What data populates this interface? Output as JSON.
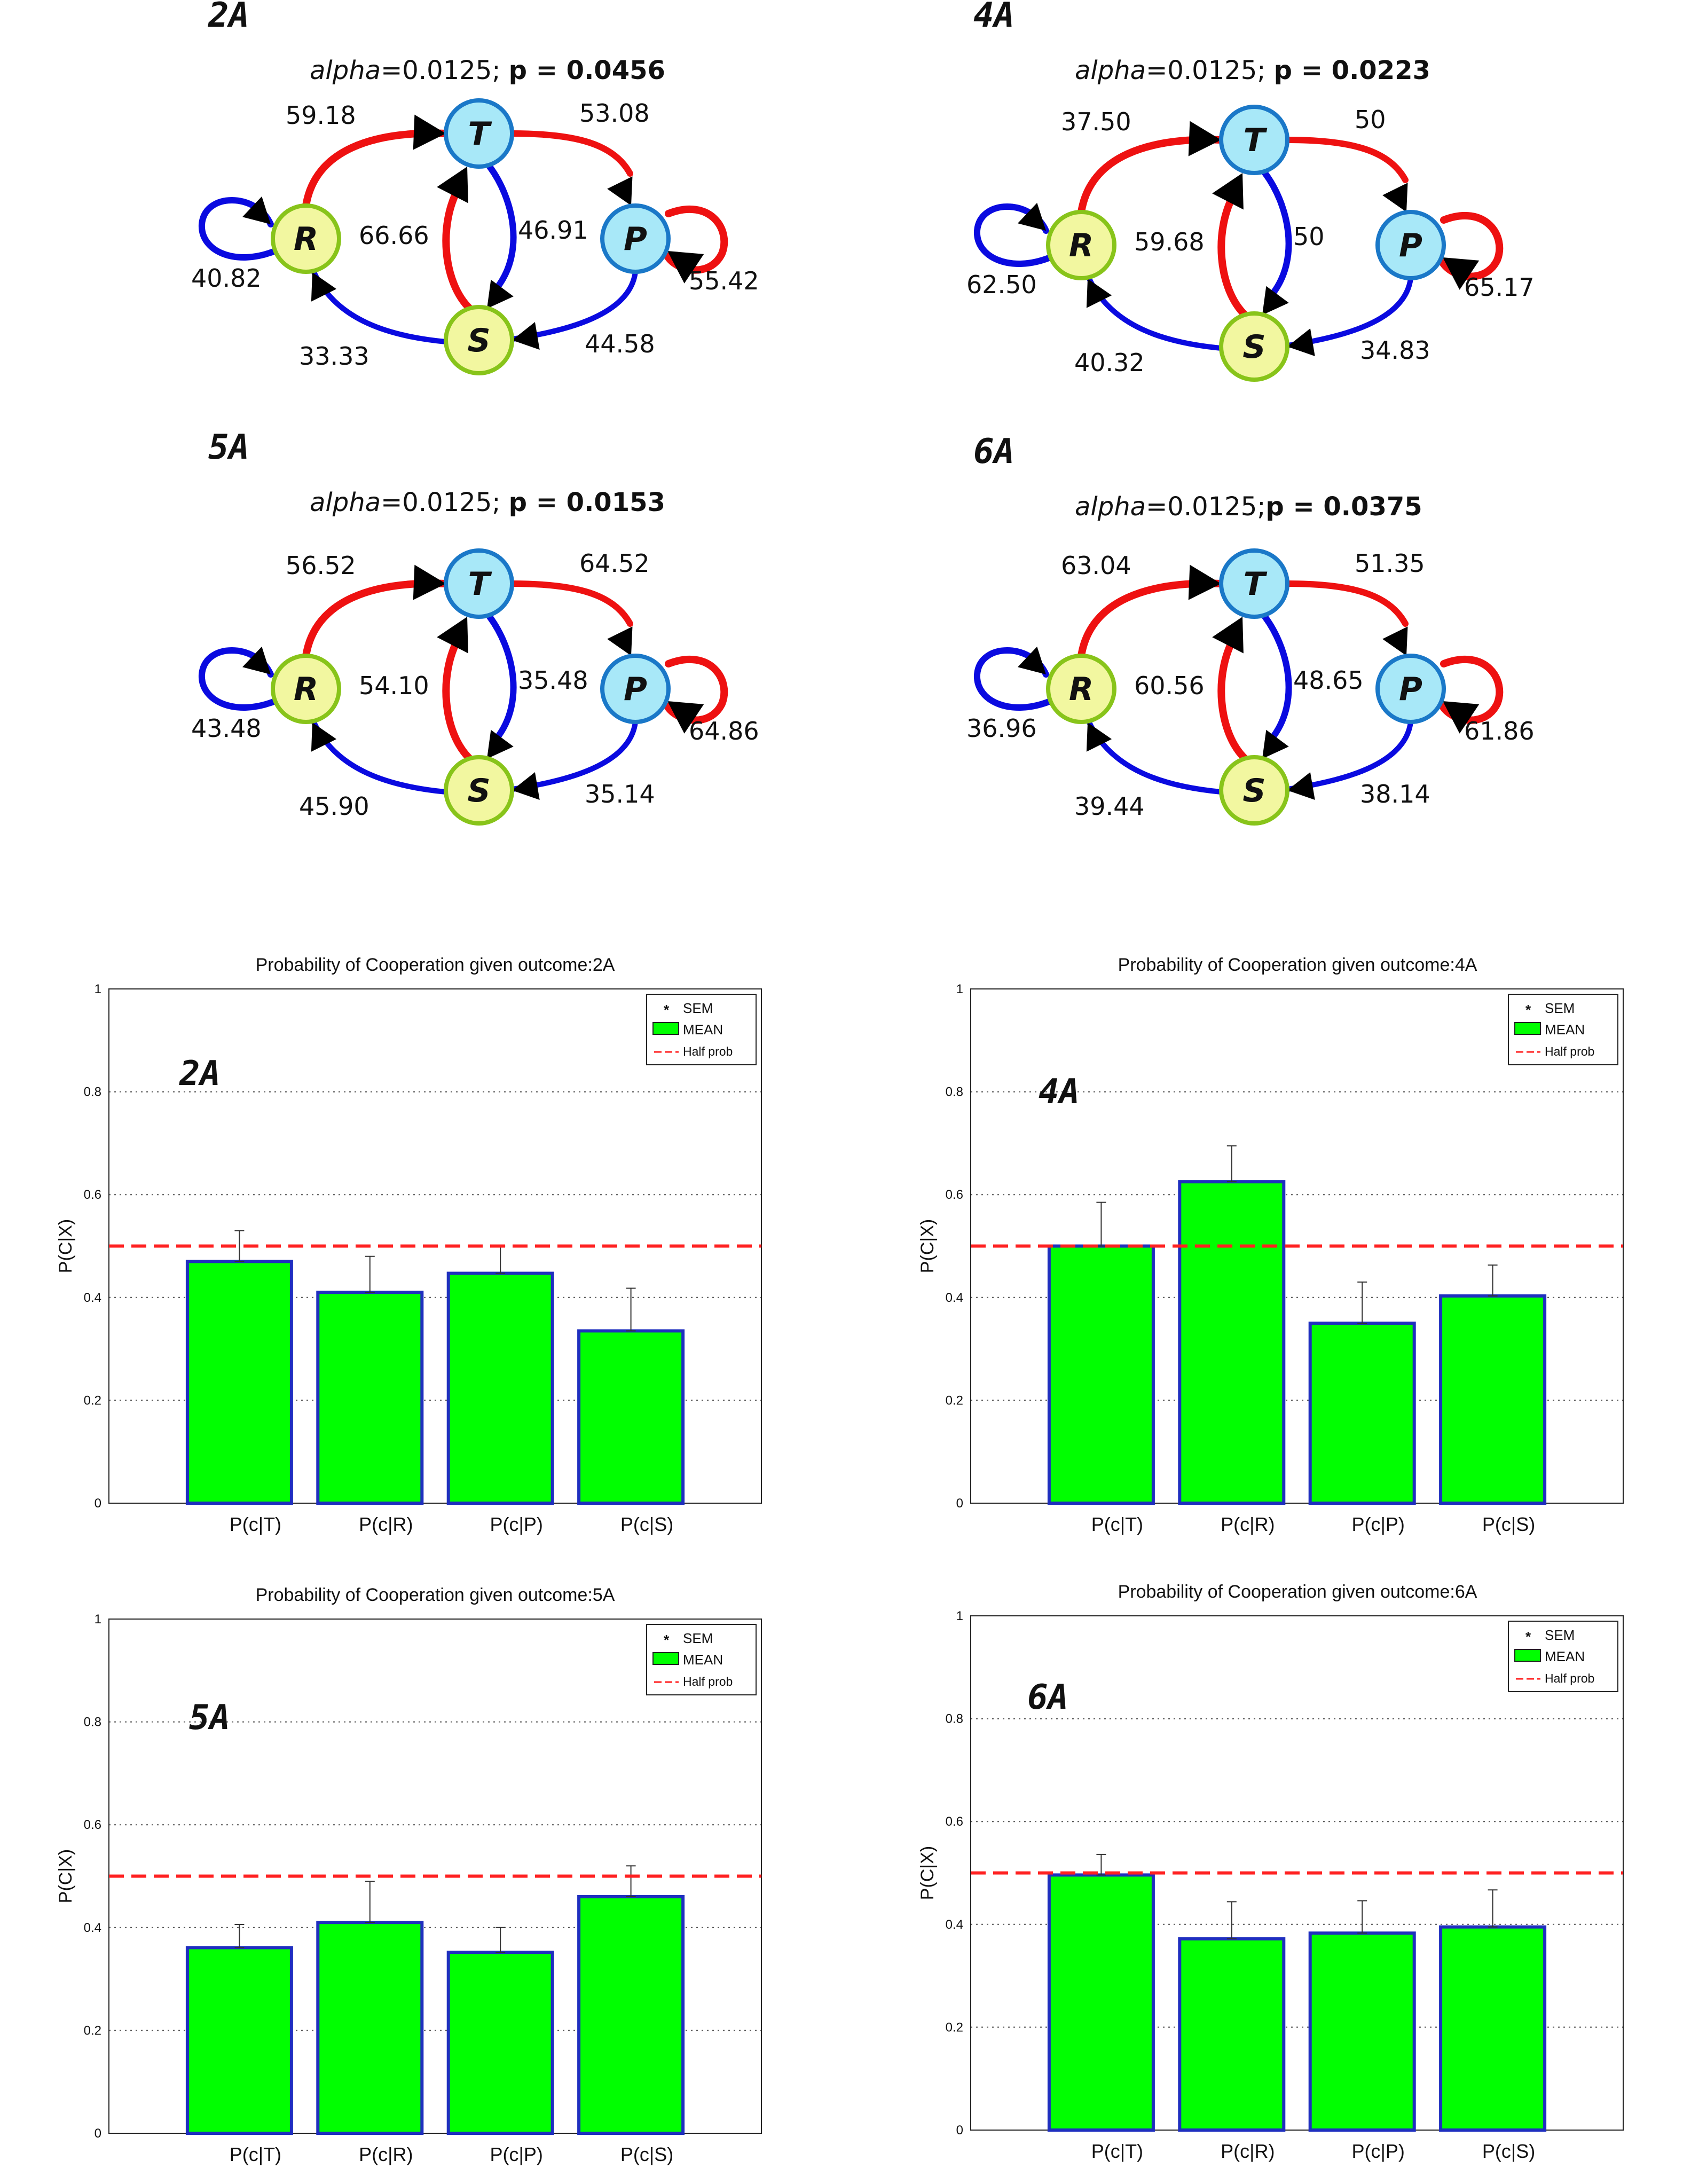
{
  "graphs": [
    {
      "panel": "2A",
      "alpha_prefix": "alpha",
      "alpha_value": "=0.0125; ",
      "p_label": "p = 0.0456",
      "nodes": {
        "R": "R",
        "T": "T",
        "P": "P",
        "S": "S"
      },
      "edges": {
        "RT": "59.18",
        "TP": "53.08",
        "RR": "40.82",
        "ST": "66.66",
        "TS": "46.91",
        "PP": "55.42",
        "SR": "33.33",
        "PS": "44.58"
      }
    },
    {
      "panel": "4A",
      "alpha_prefix": "alpha",
      "alpha_value": "=0.0125; ",
      "p_label": "p = 0.0223",
      "nodes": {
        "R": "R",
        "T": "T",
        "P": "P",
        "S": "S"
      },
      "edges": {
        "RT": "37.50",
        "TP": "50",
        "RR": "62.50",
        "ST": "59.68",
        "TS": "50",
        "PP": "65.17",
        "SR": "40.32",
        "PS": "34.83"
      }
    },
    {
      "panel": "5A",
      "alpha_prefix": "alpha",
      "alpha_value": "=0.0125; ",
      "p_label": "p = 0.0153",
      "nodes": {
        "R": "R",
        "T": "T",
        "P": "P",
        "S": "S"
      },
      "edges": {
        "RT": "56.52",
        "TP": "64.52",
        "RR": "43.48",
        "ST": "54.10",
        "TS": "35.48",
        "PP": "64.86",
        "SR": "45.90",
        "PS": "35.14"
      }
    },
    {
      "panel": "6A",
      "alpha_prefix": "alpha",
      "alpha_value": "=0.0125;",
      "p_label": "p  = 0.0375",
      "nodes": {
        "R": "R",
        "T": "T",
        "P": "P",
        "S": "S"
      },
      "edges": {
        "RT": "63.04",
        "TP": "51.35",
        "RR": "36.96",
        "ST": "60.56",
        "TS": "48.65",
        "PP": "61.86",
        "SR": "39.44",
        "PS": "38.14"
      }
    }
  ],
  "chart_data": [
    {
      "type": "bar",
      "title": "Probability of Cooperation given outcome:2A",
      "inner_label": "2A",
      "categories": [
        "P(c|T)",
        "P(c|R)",
        "P(c|P)",
        "P(c|S)"
      ],
      "values": [
        0.47,
        0.41,
        0.447,
        0.335
      ],
      "sem": [
        0.06,
        0.07,
        0.053,
        0.083
      ],
      "half_prob": 0.5,
      "ylabel": "P(C|X)",
      "yticks": [
        "0",
        "0.2",
        "0.4",
        "0.6",
        "0.8",
        "1"
      ],
      "ylim": [
        0,
        1
      ],
      "legend": [
        "SEM",
        "MEAN",
        "Half prob"
      ],
      "grid": "horizontal dotted",
      "colors": {
        "bar": "#00ff00",
        "edge": "#1f2fbf",
        "half": "#ff2020"
      }
    },
    {
      "type": "bar",
      "title": "Probability of Cooperation given outcome:4A",
      "inner_label": "4A",
      "categories": [
        "P(c|T)",
        "P(c|R)",
        "P(c|P)",
        "P(c|S)"
      ],
      "values": [
        0.5,
        0.625,
        0.35,
        0.403
      ],
      "sem": [
        0.085,
        0.07,
        0.08,
        0.06
      ],
      "half_prob": 0.5,
      "ylabel": "P(C|X)",
      "yticks": [
        "0",
        "0.2",
        "0.4",
        "0.6",
        "0.8",
        "1"
      ],
      "ylim": [
        0,
        1
      ],
      "legend": [
        "SEM",
        "MEAN",
        "Half prob"
      ],
      "grid": "horizontal dotted",
      "colors": {
        "bar": "#00ff00",
        "edge": "#1f2fbf",
        "half": "#ff2020"
      }
    },
    {
      "type": "bar",
      "title": "Probability of Cooperation given outcome:5A",
      "inner_label": "5A",
      "categories": [
        "P(c|T)",
        "P(c|R)",
        "P(c|P)",
        "P(c|S)"
      ],
      "values": [
        0.361,
        0.41,
        0.352,
        0.46
      ],
      "sem": [
        0.045,
        0.08,
        0.048,
        0.06
      ],
      "half_prob": 0.5,
      "ylabel": "P(C|X)",
      "yticks": [
        "0",
        "0.2",
        "0.4",
        "0.6",
        "0.8",
        "1"
      ],
      "ylim": [
        0,
        1
      ],
      "legend": [
        "SEM",
        "MEAN",
        "Half prob"
      ],
      "grid": "horizontal dotted",
      "colors": {
        "bar": "#00ff00",
        "edge": "#1f2fbf",
        "half": "#ff2020"
      }
    },
    {
      "type": "bar",
      "title": "Probability of Cooperation given outcome:6A",
      "inner_label": "6A",
      "categories": [
        "P(c|T)",
        "P(c|R)",
        "P(c|P)",
        "P(c|S)"
      ],
      "values": [
        0.496,
        0.372,
        0.383,
        0.395
      ],
      "sem": [
        0.04,
        0.072,
        0.063,
        0.072
      ],
      "half_prob": 0.5,
      "ylabel": "P(C|X)",
      "yticks": [
        "0",
        "0.2",
        "0.4",
        "0.6",
        "0.8",
        "1"
      ],
      "ylim": [
        0,
        1
      ],
      "legend": [
        "SEM",
        "MEAN",
        "Half prob"
      ],
      "grid": "horizontal dotted",
      "colors": {
        "bar": "#00ff00",
        "edge": "#1f2fbf",
        "half": "#ff2020"
      }
    }
  ],
  "colors": {
    "red_edge": "#ee1111",
    "blue_edge": "#0a0ae0",
    "node_green": "#f2f7a0",
    "node_green_border": "#88c41a",
    "node_blue": "#a8e8f8",
    "node_blue_border": "#1a78c8"
  }
}
